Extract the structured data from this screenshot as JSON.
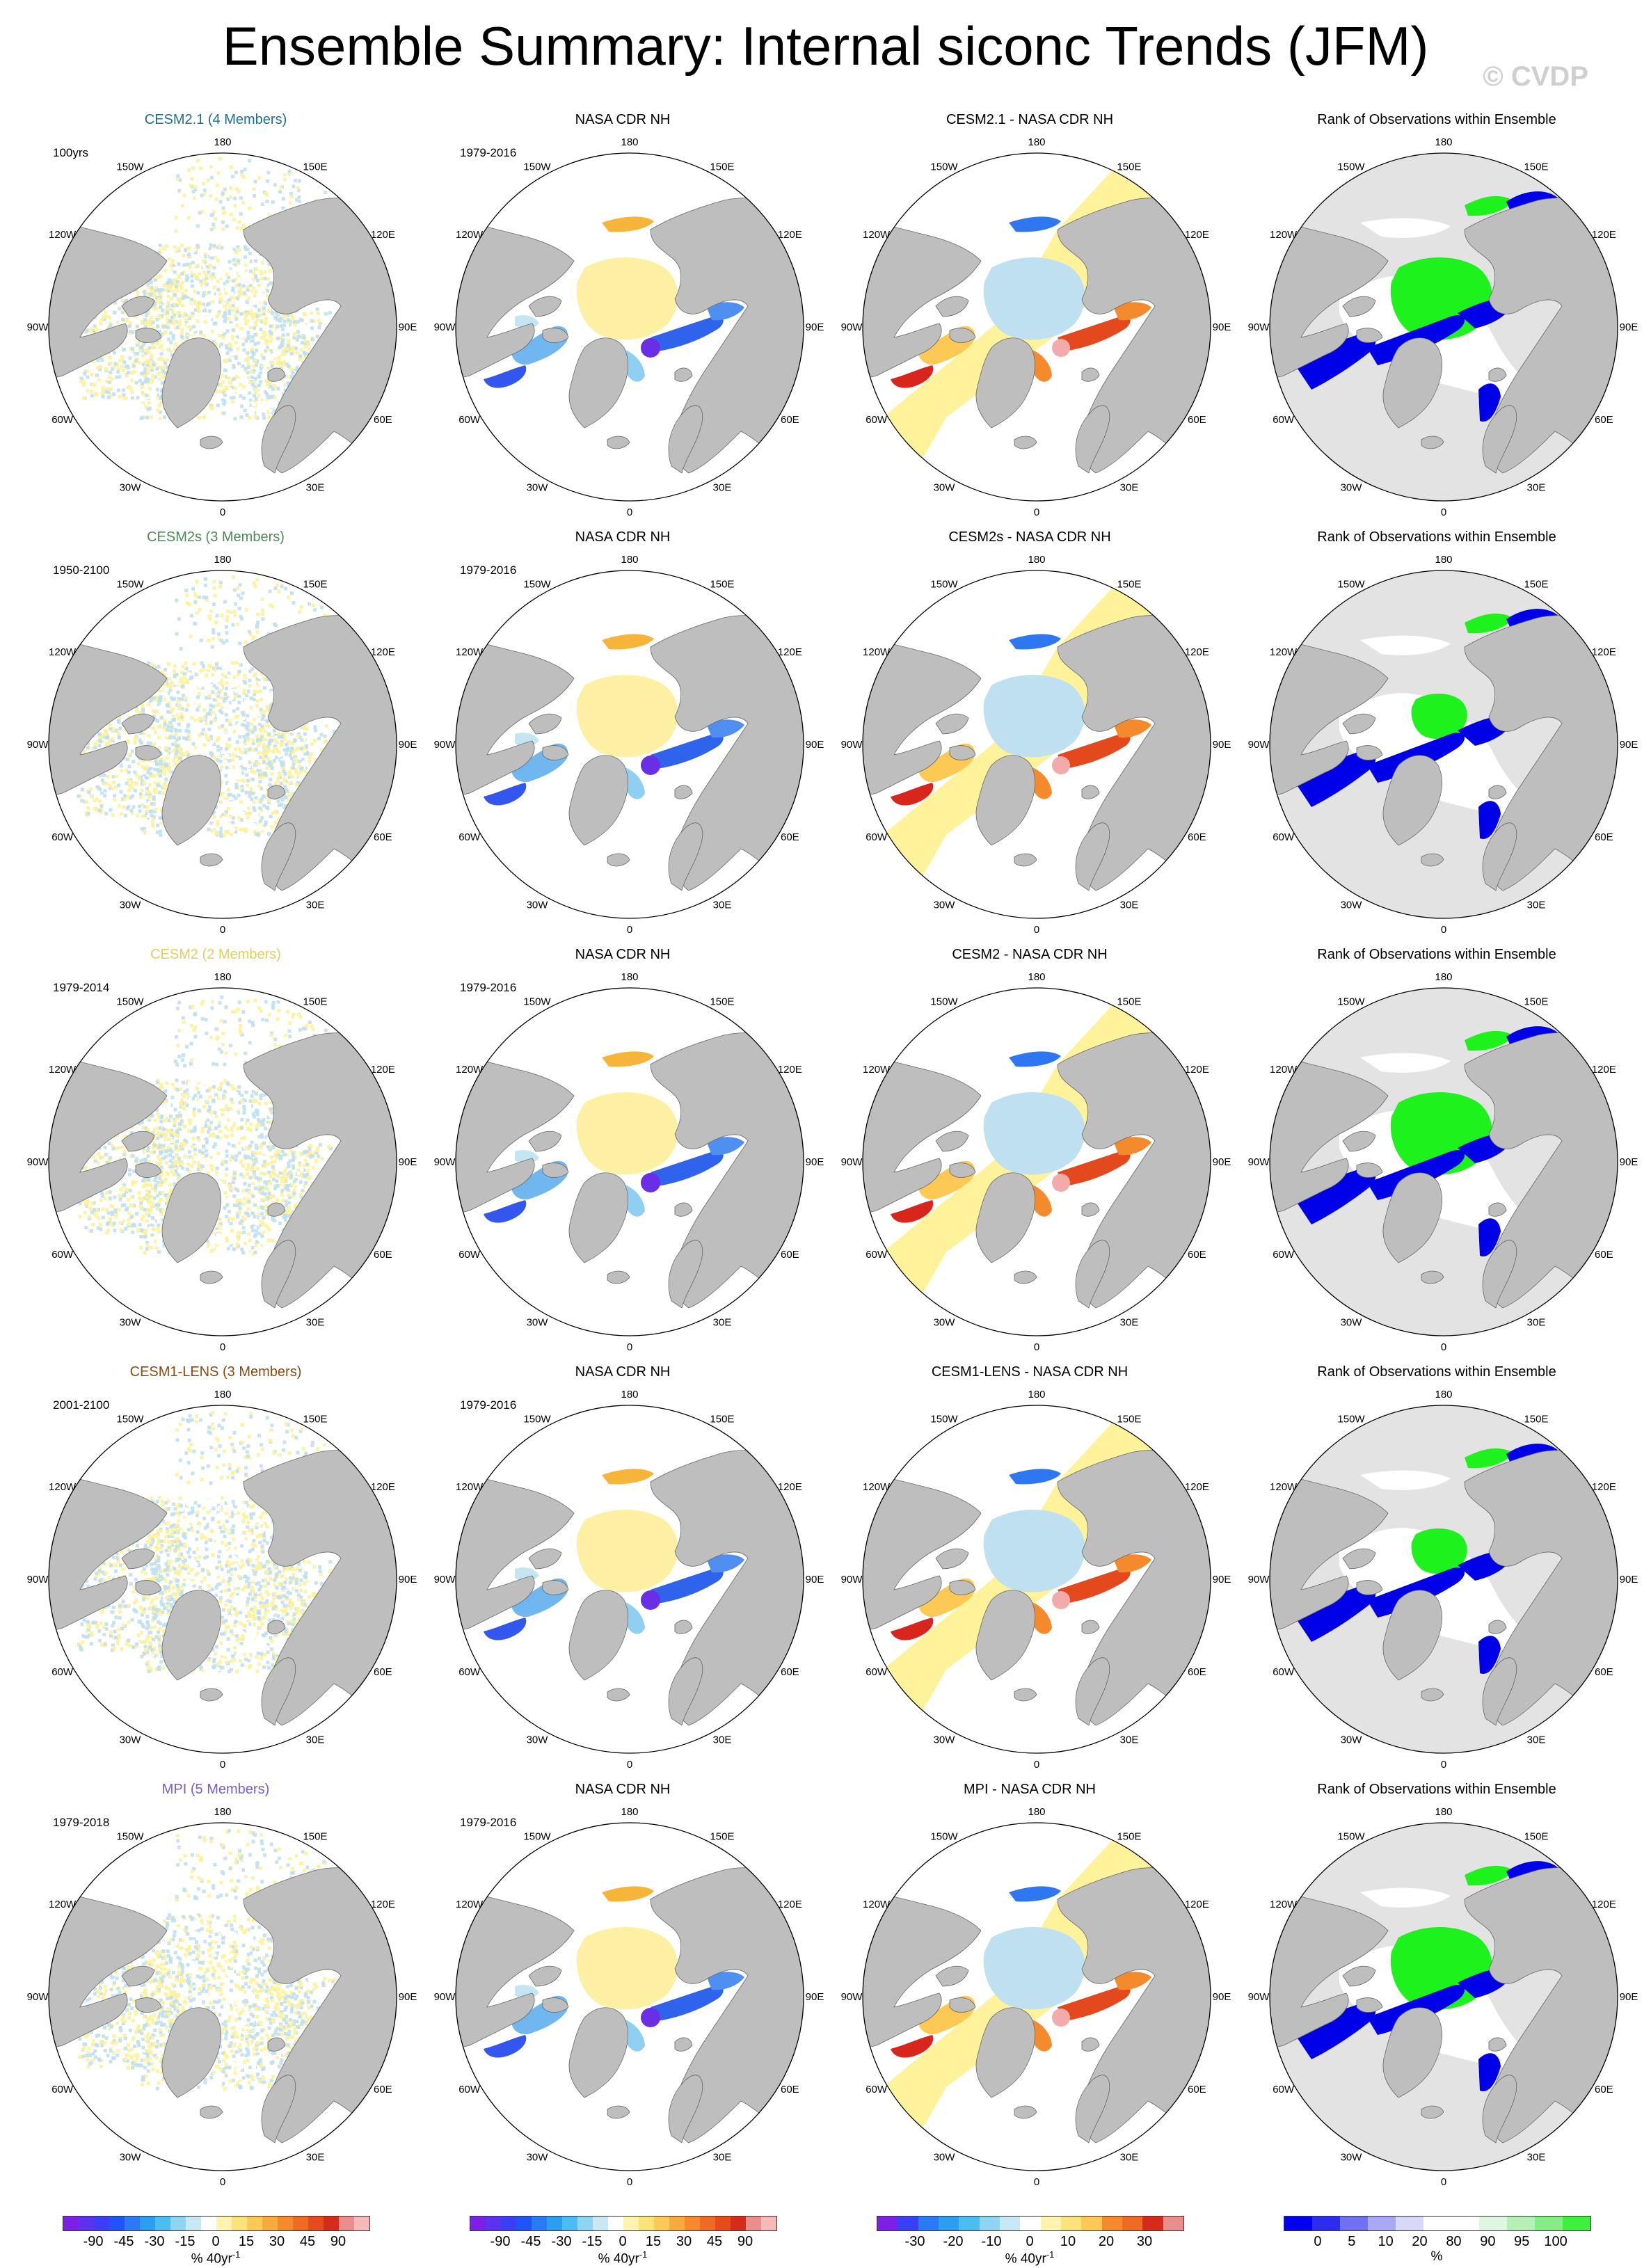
{
  "title": "Ensemble Summary: Internal siconc Trends (JFM)",
  "watermark": "© CVDP",
  "colors": {
    "land": "#bebebe",
    "ocean": "#ffffff",
    "rank_land": "#e3e3e3",
    "yellow": "#fef29a",
    "lightblue": "#bfe0f0"
  },
  "lon_labels": [
    "180",
    "150E",
    "120E",
    "90E",
    "60E",
    "30E",
    "0",
    "30W",
    "60W",
    "90W",
    "120W",
    "150W"
  ],
  "rows": [
    {
      "model": {
        "title": "CESM2.1 (4 Members)",
        "color": "#1d6f94",
        "period": "100yrs"
      },
      "obs": {
        "title": "NASA CDR NH",
        "period": "1979-2016"
      },
      "diff": {
        "title": "CESM2.1 - NASA CDR NH"
      },
      "rank": {
        "title": "Rank of Observations within Ensemble"
      }
    },
    {
      "model": {
        "title": "CESM2s (3 Members)",
        "color": "#4e8a57",
        "period": "1950-2100"
      },
      "obs": {
        "title": "NASA CDR NH",
        "period": "1979-2016"
      },
      "diff": {
        "title": "CESM2s - NASA CDR NH"
      },
      "rank": {
        "title": "Rank of Observations within Ensemble"
      }
    },
    {
      "model": {
        "title": "CESM2 (2 Members)",
        "color": "#e0cf5f",
        "period": "1979-2014"
      },
      "obs": {
        "title": "NASA CDR NH",
        "period": "1979-2016"
      },
      "diff": {
        "title": "CESM2 - NASA CDR NH"
      },
      "rank": {
        "title": "Rank of Observations within Ensemble"
      }
    },
    {
      "model": {
        "title": "CESM1-LENS (3 Members)",
        "color": "#8b4a12",
        "period": "2001-2100"
      },
      "obs": {
        "title": "NASA CDR NH",
        "period": "1979-2016"
      },
      "diff": {
        "title": "CESM1-LENS - NASA CDR NH"
      },
      "rank": {
        "title": "Rank of Observations within Ensemble"
      }
    },
    {
      "model": {
        "title": "MPI (5 Members)",
        "color": "#7a5cc9",
        "period": "1979-2018"
      },
      "obs": {
        "title": "NASA CDR NH",
        "period": "1979-2016"
      },
      "diff": {
        "title": "MPI - NASA CDR NH"
      },
      "rank": {
        "title": "Rank of Observations within Ensemble"
      }
    }
  ],
  "colorbars": [
    {
      "id": "trend-model",
      "colors": [
        "#7e1fe8",
        "#5b32f0",
        "#3a3ff5",
        "#1f55f8",
        "#2a7af5",
        "#2b9ef0",
        "#4cbdf0",
        "#8fd5f2",
        "#c8e8f5",
        "#ffffff",
        "#fff3b0",
        "#fbe27a",
        "#fbc954",
        "#f8ab3d",
        "#f48a2c",
        "#ef6a22",
        "#e74b1d",
        "#d62b1b",
        "#e98d8d",
        "#f6b9b9"
      ],
      "ticks": [
        "-90",
        "-45",
        "-30",
        "-15",
        "0",
        "15",
        "30",
        "45",
        "90"
      ],
      "unit": "% 40yr",
      "unit_sup": "-1"
    },
    {
      "id": "trend-obs",
      "colors": [
        "#7e1fe8",
        "#5b32f0",
        "#3a3ff5",
        "#1f55f8",
        "#2a7af5",
        "#2b9ef0",
        "#4cbdf0",
        "#8fd5f2",
        "#c8e8f5",
        "#ffffff",
        "#fff3b0",
        "#fbe27a",
        "#fbc954",
        "#f8ab3d",
        "#f48a2c",
        "#ef6a22",
        "#e74b1d",
        "#d62b1b",
        "#e98d8d",
        "#f6b9b9"
      ],
      "ticks": [
        "-90",
        "-45",
        "-30",
        "-15",
        "0",
        "15",
        "30",
        "45",
        "90"
      ],
      "unit": "% 40yr",
      "unit_sup": "-1"
    },
    {
      "id": "trend-diff",
      "colors": [
        "#7e1fe8",
        "#3a3ff5",
        "#2a7af5",
        "#2b9ef0",
        "#4cbdf0",
        "#8fd5f2",
        "#c8e8f5",
        "#ffffff",
        "#fff3b0",
        "#fbe27a",
        "#fbc954",
        "#f48a2c",
        "#ef6a22",
        "#d62b1b",
        "#e98d8d"
      ],
      "ticks": [
        "-30",
        "-20",
        "-10",
        "0",
        "10",
        "20",
        "30"
      ],
      "unit": "% 40yr",
      "unit_sup": "-1"
    },
    {
      "id": "rank",
      "colors": [
        "#0000ee",
        "#2d2df2",
        "#7070f2",
        "#a8a8f5",
        "#d8d8f8",
        "#ffffff",
        "#ffffff",
        "#dff7df",
        "#b6f0b6",
        "#86ec86",
        "#3ef03e"
      ],
      "ticks": [
        "0",
        "5",
        "10",
        "20",
        "80",
        "90",
        "95",
        "100"
      ],
      "unit": "%",
      "unit_sup": ""
    }
  ]
}
